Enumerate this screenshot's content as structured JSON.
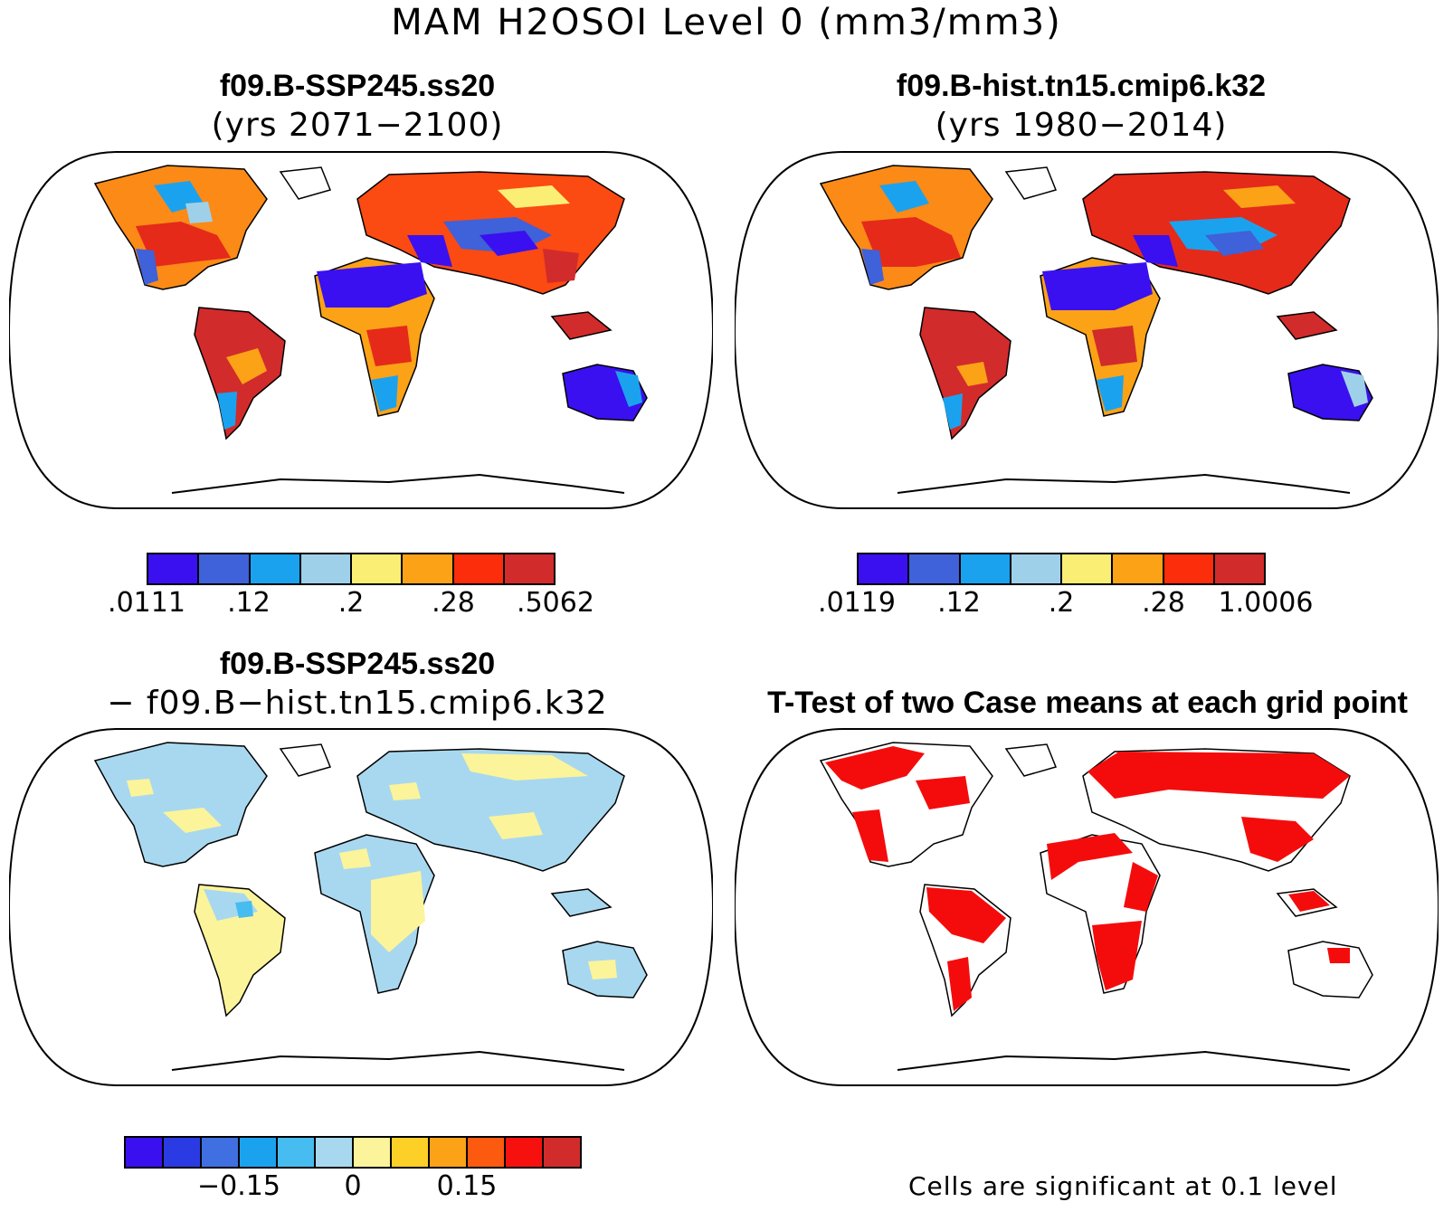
{
  "main_title": "MAM H2OSOI Level 0 (mm3/mm3)",
  "panels": {
    "top_left": {
      "title": "f09.B-SSP245.ss20",
      "subtitle": "(yrs 2071−2100)",
      "colorbar": {
        "colors": [
          "#3a10f0",
          "#3f61d9",
          "#1ba2ee",
          "#9fd0ea",
          "#fbee75",
          "#fba217",
          "#fb2d0a",
          "#d22b2b"
        ],
        "labels": [
          ".0111",
          ".12",
          ".2",
          ".28",
          ".5062"
        ]
      }
    },
    "top_right": {
      "title": "f09.B-hist.tn15.cmip6.k32",
      "subtitle": "(yrs 1980−2014)",
      "colorbar": {
        "colors": [
          "#3a10f0",
          "#3f61d9",
          "#1ba2ee",
          "#9fd0ea",
          "#fbee75",
          "#fba217",
          "#fb2d0a",
          "#d22b2b"
        ],
        "labels": [
          ".0119",
          ".12",
          ".2",
          ".28",
          "1.0006"
        ]
      }
    },
    "bottom_left": {
      "title": "f09.B-SSP245.ss20",
      "subtitle": "− f09.B−hist.tn15.cmip6.k32",
      "colorbar": {
        "colors": [
          "#3a10f0",
          "#2a3be4",
          "#3f6fe0",
          "#1ba2ee",
          "#46bcf0",
          "#a8d8ef",
          "#fbf49a",
          "#fcd026",
          "#fba217",
          "#fb5a0f",
          "#f6110e",
          "#d22b2b"
        ],
        "labels": [
          "−0.15",
          "0",
          "0.15"
        ]
      }
    },
    "bottom_right": {
      "title": "T-Test of two Case means at each grid point",
      "note": "Cells are significant at 0.1 level",
      "significant_color": "#f40c0c"
    }
  }
}
